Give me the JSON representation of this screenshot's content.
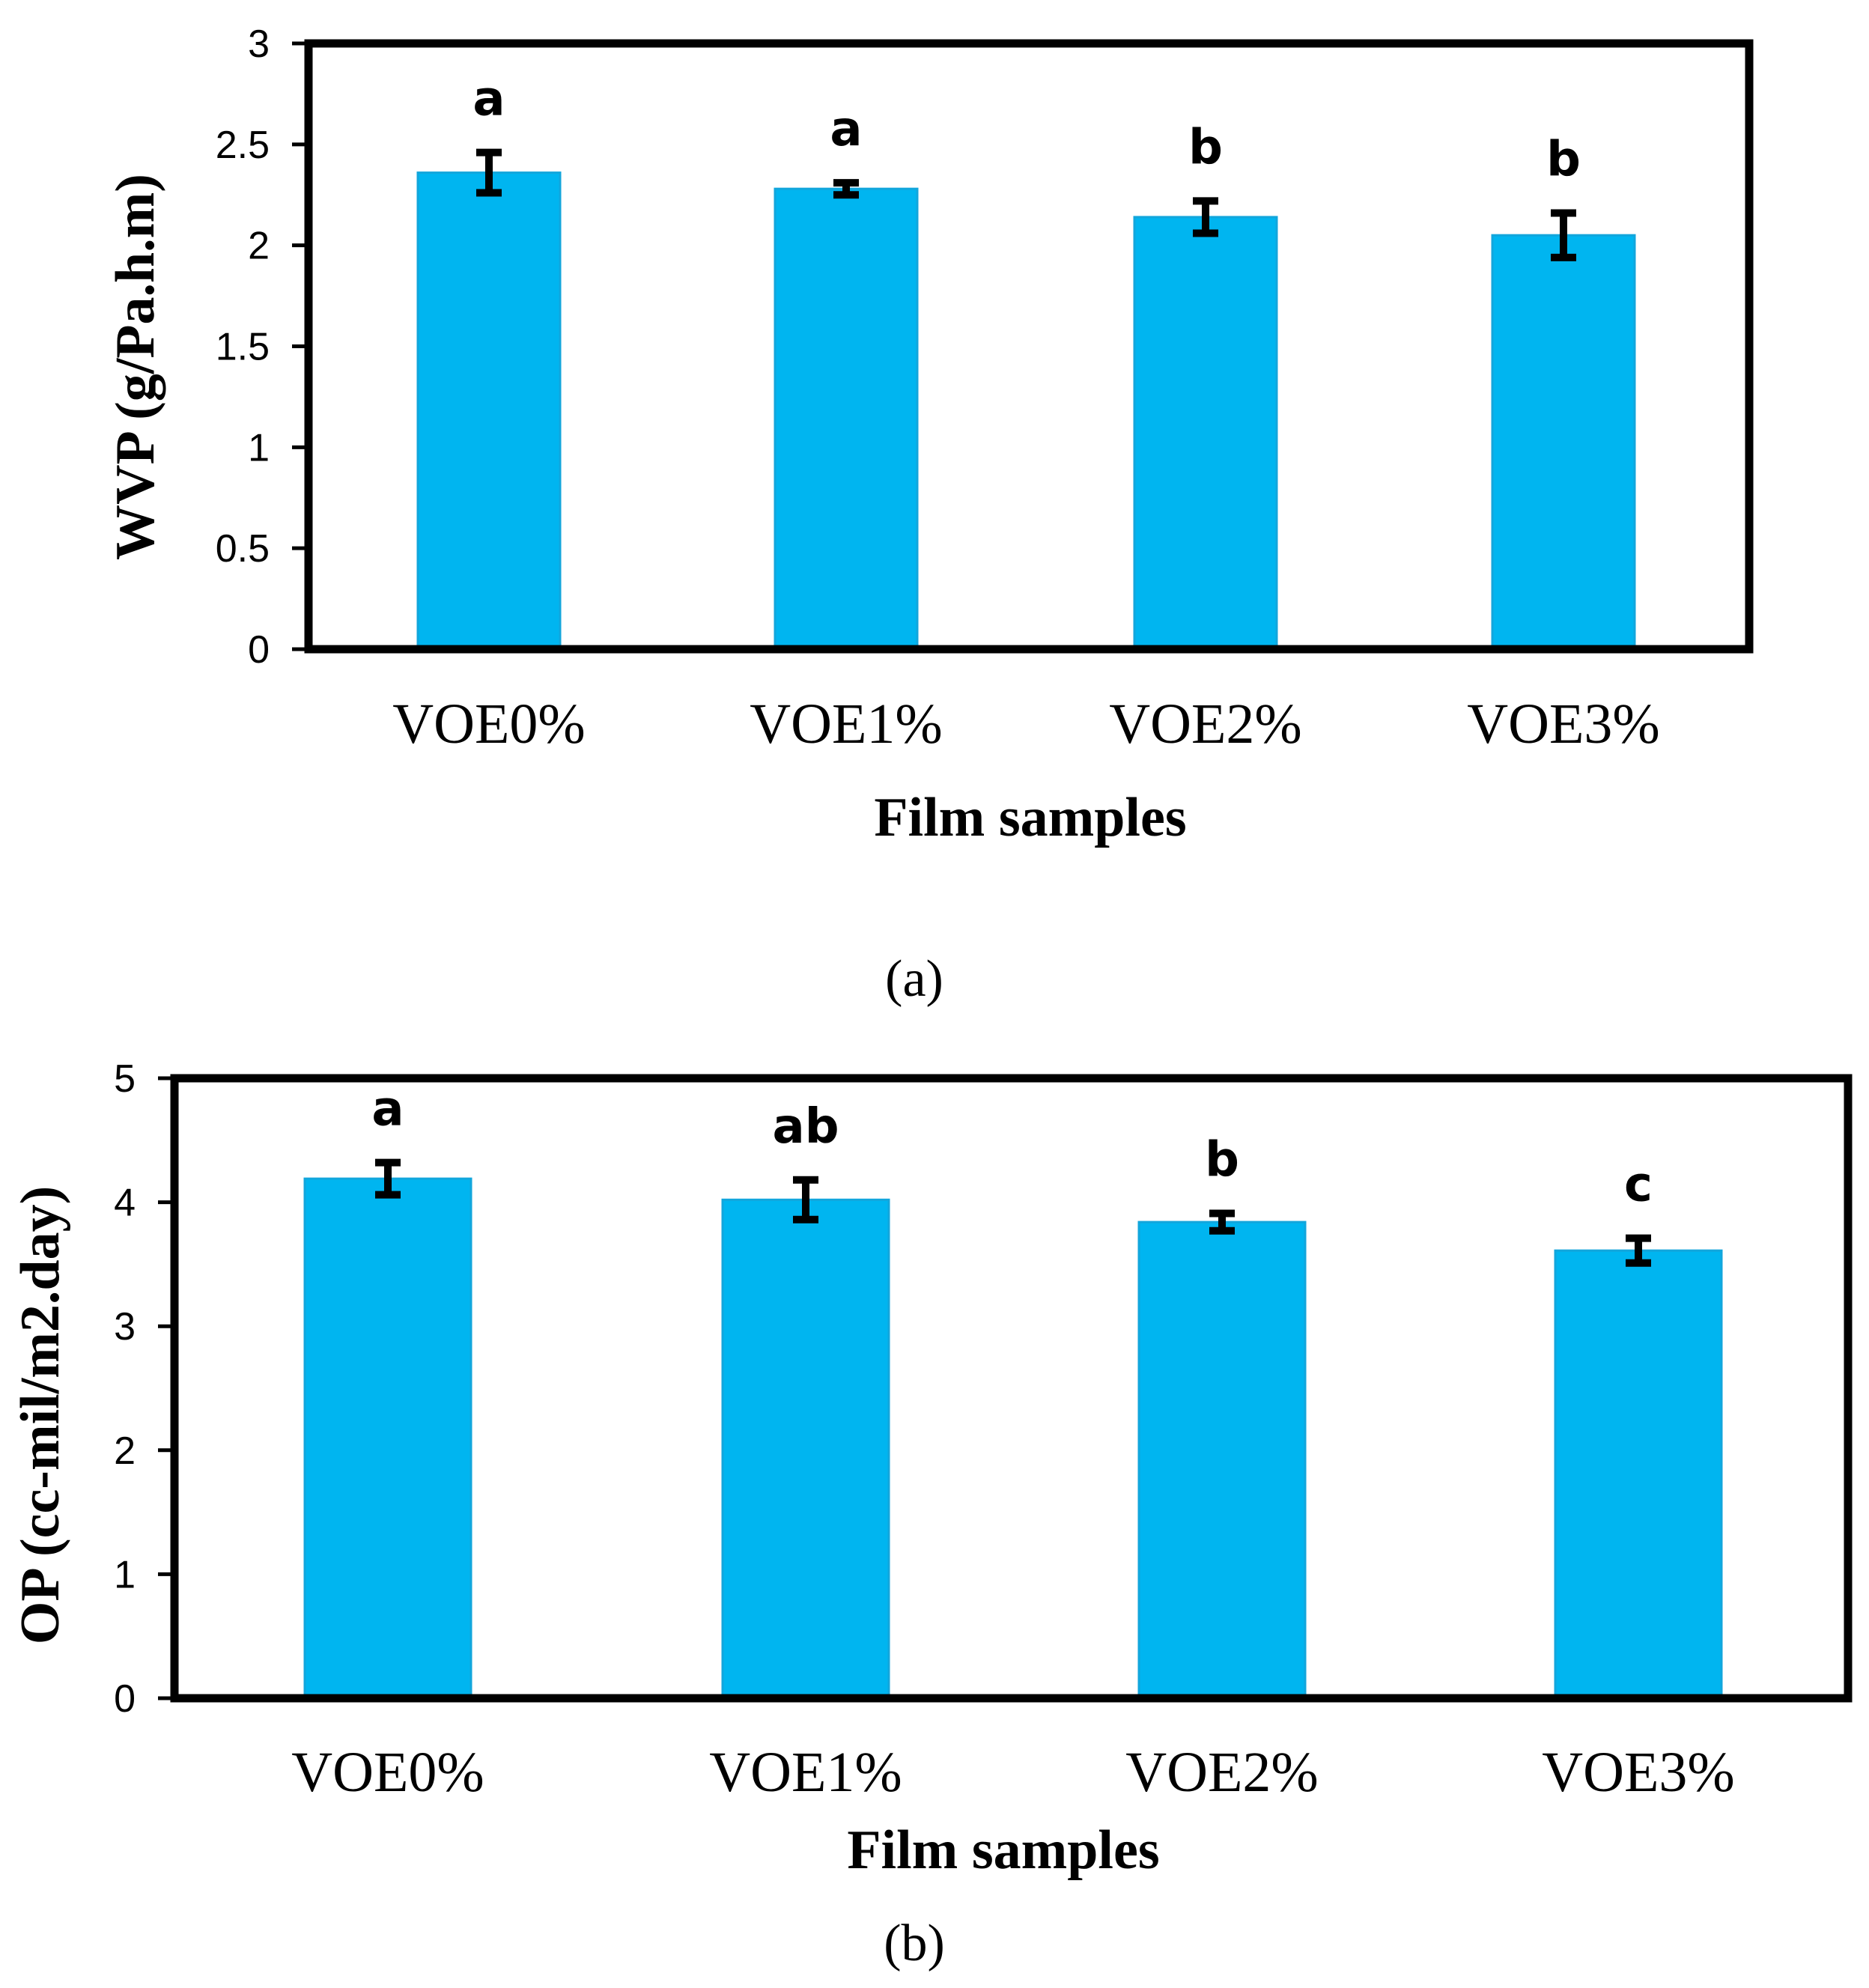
{
  "colors": {
    "bar_fill": "#00b5f0",
    "bar_edge": "#12a6dc",
    "axis": "#000000",
    "error_bar": "#000000"
  },
  "chart_data": [
    {
      "id": "wvp",
      "type": "bar",
      "caption": "(a)",
      "title": "",
      "xlabel": "Film samples",
      "ylabel": "WVP (g/Pa.h.m)",
      "categories": [
        "VOE0%",
        "VOE1%",
        "VOE2%",
        "VOE3%"
      ],
      "values": [
        2.36,
        2.28,
        2.14,
        2.05
      ],
      "errors": [
        0.1,
        0.03,
        0.08,
        0.11
      ],
      "significance": [
        "a",
        "a",
        "b",
        "b"
      ],
      "ylim": [
        0,
        3
      ],
      "yticks": [
        0,
        0.5,
        1,
        1.5,
        2,
        2.5,
        3
      ],
      "ytick_labels": [
        "0",
        "0.5",
        "1",
        "1.5",
        "2",
        "2.5",
        "3"
      ],
      "grid": false,
      "legend": "none"
    },
    {
      "id": "op",
      "type": "bar",
      "caption": "(b)",
      "title": "",
      "xlabel": "Film samples",
      "ylabel": "OP (cc-mil/m2.day)",
      "categories": [
        "VOE0%",
        "VOE1%",
        "VOE2%",
        "VOE3%"
      ],
      "values": [
        4.19,
        4.02,
        3.84,
        3.61
      ],
      "errors": [
        0.13,
        0.16,
        0.07,
        0.1
      ],
      "significance": [
        "a",
        "ab",
        "b",
        "c"
      ],
      "ylim": [
        0,
        5
      ],
      "yticks": [
        0,
        1,
        2,
        3,
        4,
        5
      ],
      "ytick_labels": [
        "0",
        "1",
        "2",
        "3",
        "4",
        "5"
      ],
      "grid": false,
      "legend": "none"
    }
  ]
}
